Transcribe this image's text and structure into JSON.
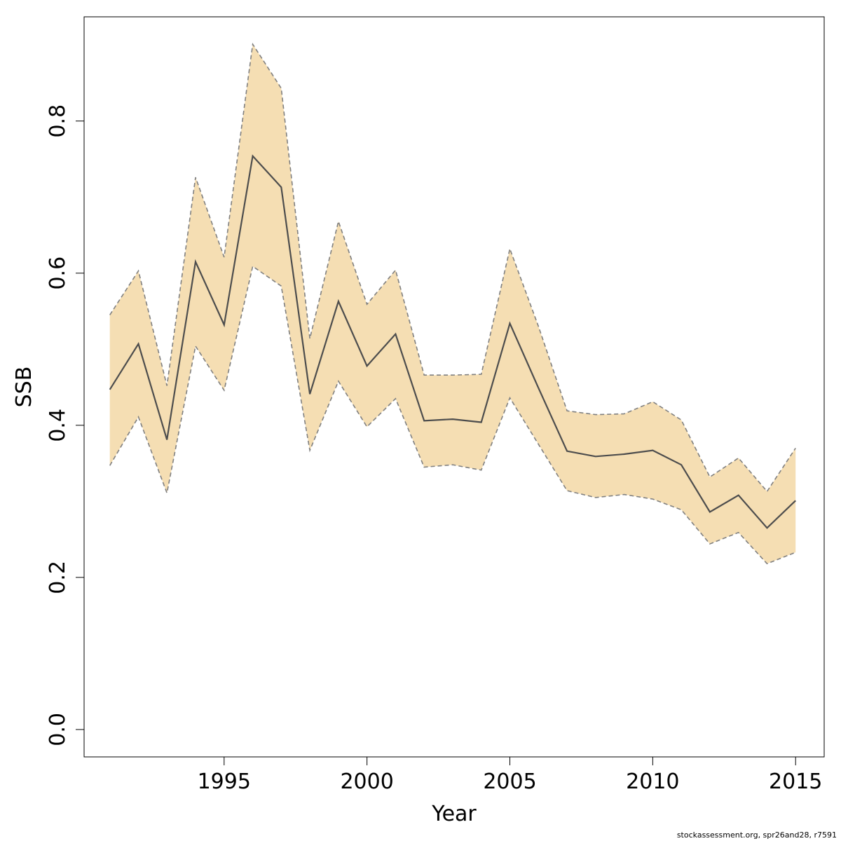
{
  "chart_data": {
    "type": "line",
    "xlabel": "Year",
    "ylabel": "SSB",
    "xlim": [
      1990.1,
      2016.0
    ],
    "ylim": [
      -0.036,
      0.937
    ],
    "x_ticks": [
      1995,
      2000,
      2005,
      2010,
      2015
    ],
    "y_ticks": [
      0.0,
      0.2,
      0.4,
      0.6,
      0.8
    ],
    "y_tick_labels": [
      "0.0",
      "0.2",
      "0.4",
      "0.6",
      "0.8"
    ],
    "x": [
      1991,
      1992,
      1993,
      1994,
      1995,
      1996,
      1997,
      1998,
      1999,
      2000,
      2001,
      2002,
      2003,
      2004,
      2005,
      2006,
      2007,
      2008,
      2009,
      2010,
      2011,
      2012,
      2013,
      2014,
      2015
    ],
    "series": [
      {
        "role": "estimate",
        "values": [
          0.447,
          0.507,
          0.381,
          0.615,
          0.532,
          0.754,
          0.713,
          0.441,
          0.563,
          0.478,
          0.52,
          0.406,
          0.408,
          0.404,
          0.534,
          0.449,
          0.366,
          0.359,
          0.362,
          0.367,
          0.348,
          0.286,
          0.308,
          0.265,
          0.301
        ]
      },
      {
        "role": "upper",
        "values": [
          0.545,
          0.603,
          0.452,
          0.726,
          0.621,
          0.901,
          0.843,
          0.514,
          0.668,
          0.559,
          0.604,
          0.466,
          0.466,
          0.467,
          0.632,
          0.53,
          0.419,
          0.414,
          0.415,
          0.431,
          0.407,
          0.332,
          0.357,
          0.313,
          0.37
        ]
      },
      {
        "role": "lower",
        "values": [
          0.347,
          0.411,
          0.311,
          0.504,
          0.446,
          0.609,
          0.583,
          0.367,
          0.458,
          0.398,
          0.435,
          0.345,
          0.348,
          0.341,
          0.436,
          0.375,
          0.314,
          0.305,
          0.309,
          0.303,
          0.289,
          0.244,
          0.259,
          0.218,
          0.233
        ]
      }
    ],
    "grid": false,
    "colors": {
      "band": "#f5deb3",
      "line": "#4d4d4d",
      "bound": "#808080"
    }
  },
  "footer": "stockassessment.org, spr26and28, r7591"
}
